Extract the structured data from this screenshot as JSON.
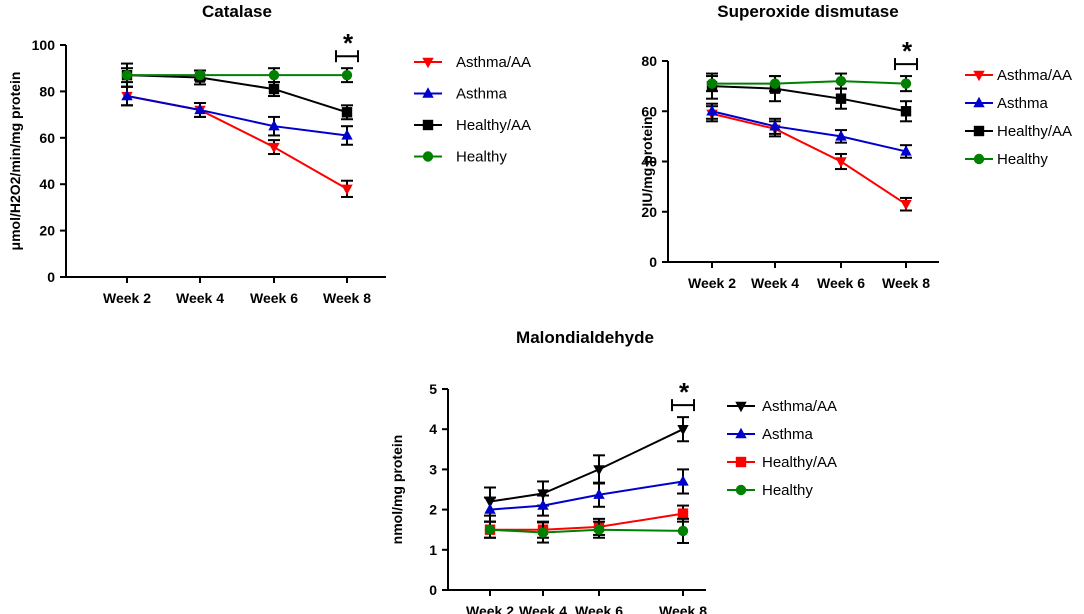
{
  "chart_data": [
    {
      "type": "line",
      "title": "Catalase",
      "xlabel": "",
      "ylabel": "μmol/H2O2/min/mg protein",
      "categories": [
        "Week 2",
        "Week 4",
        "Week 6",
        "Week 8"
      ],
      "ylim": [
        0,
        100
      ],
      "yticks": [
        "0",
        "20",
        "40",
        "60",
        "80",
        "100"
      ],
      "significance": "*",
      "series": [
        {
          "name": "Asthma/AA",
          "color": "#ff0000",
          "marker": "triangle-down",
          "values": [
            78,
            72,
            56,
            38
          ],
          "errors": [
            4,
            3,
            3,
            3.5
          ]
        },
        {
          "name": "Asthma",
          "color": "#0000cc",
          "marker": "triangle-up",
          "values": [
            78,
            72,
            65,
            61
          ],
          "errors": [
            4,
            3,
            4,
            4
          ]
        },
        {
          "name": "Healthy/AA",
          "color": "#000000",
          "marker": "square",
          "values": [
            87,
            86,
            81,
            71
          ],
          "errors": [
            5,
            3,
            3,
            3
          ]
        },
        {
          "name": "Healthy",
          "color": "#008000",
          "marker": "circle",
          "values": [
            87,
            87,
            87,
            87
          ],
          "errors": [
            3,
            2,
            3,
            3
          ]
        }
      ]
    },
    {
      "type": "line",
      "title": "Superoxide dismutase",
      "xlabel": "",
      "ylabel": "IU/mg protein",
      "categories": [
        "Week 2",
        "Week 4",
        "Week 6",
        "Week 8"
      ],
      "ylim": [
        0,
        80
      ],
      "yticks": [
        "0",
        "20",
        "40",
        "60",
        "80"
      ],
      "significance": "*",
      "series": [
        {
          "name": "Asthma/AA",
          "color": "#ff0000",
          "marker": "triangle-down",
          "values": [
            59,
            53,
            40,
            23
          ],
          "errors": [
            3,
            3,
            3,
            2.5
          ]
        },
        {
          "name": "Asthma",
          "color": "#0000cc",
          "marker": "triangle-up",
          "values": [
            60,
            54,
            50,
            44
          ],
          "errors": [
            3,
            3,
            2.5,
            2.5
          ]
        },
        {
          "name": "Healthy/AA",
          "color": "#000000",
          "marker": "square",
          "values": [
            70,
            69,
            65,
            60
          ],
          "errors": [
            5,
            5,
            4,
            4
          ]
        },
        {
          "name": "Healthy",
          "color": "#008000",
          "marker": "circle",
          "values": [
            71,
            71,
            72,
            71
          ],
          "errors": [
            3,
            3,
            3,
            3
          ]
        }
      ]
    },
    {
      "type": "line",
      "title": "Malondialdehyde",
      "xlabel": "",
      "ylabel": "nmol/mg protein",
      "categories": [
        "Week 2",
        "Week 4",
        "Week 6",
        "Week 8"
      ],
      "ylim": [
        0,
        5
      ],
      "yticks": [
        "0",
        "1",
        "2",
        "3",
        "4",
        "5"
      ],
      "significance": "*",
      "series": [
        {
          "name": "Asthma/AA",
          "color": "#000000",
          "marker": "triangle-down",
          "values": [
            2.2,
            2.4,
            3.0,
            4.0
          ],
          "errors": [
            0.35,
            0.3,
            0.35,
            0.3
          ]
        },
        {
          "name": "Asthma",
          "color": "#0000cc",
          "marker": "triangle-up",
          "values": [
            2.0,
            2.1,
            2.37,
            2.7
          ],
          "errors": [
            0.3,
            0.25,
            0.3,
            0.3
          ]
        },
        {
          "name": "Healthy/AA",
          "color": "#ff0000",
          "marker": "square",
          "values": [
            1.5,
            1.5,
            1.57,
            1.9
          ],
          "errors": [
            0.2,
            0.2,
            0.2,
            0.2
          ]
        },
        {
          "name": "Healthy",
          "color": "#008000",
          "marker": "circle",
          "values": [
            1.5,
            1.43,
            1.5,
            1.47
          ],
          "errors": [
            0.2,
            0.25,
            0.2,
            0.3
          ]
        }
      ]
    }
  ]
}
